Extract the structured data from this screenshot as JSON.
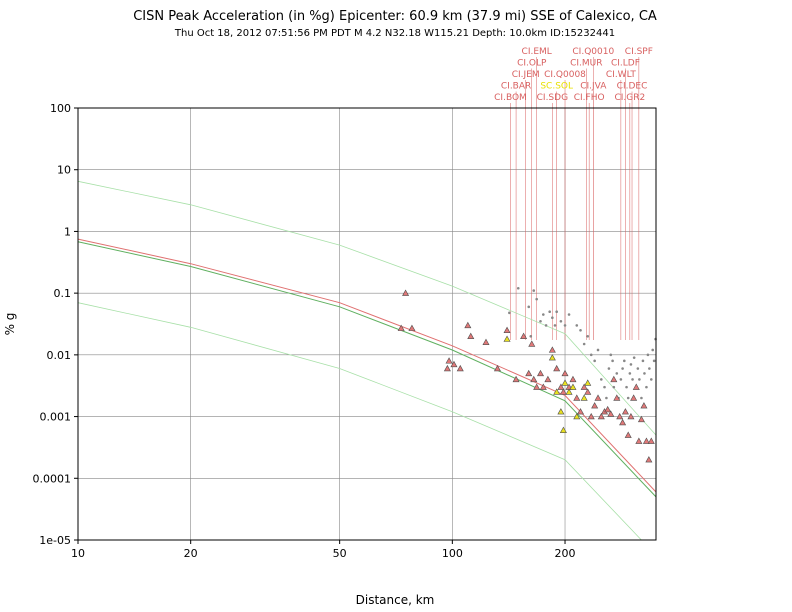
{
  "chart_data": {
    "type": "scatter",
    "title": "CISN Peak Acceleration (in %g) Epicenter: 60.9 km (37.9 mi) SSE of Calexico, CA",
    "subtitle": "Thu Oct 18, 2012 07:51:56 PM PDT   M 4.2   N32.18 W115.21   Depth: 10.0km   ID:15232441",
    "xlabel": "Distance, km",
    "ylabel": "% g",
    "x_scale": "log",
    "y_scale": "log",
    "xlim": [
      10,
      350
    ],
    "ylim": [
      1e-05,
      100
    ],
    "grid": true,
    "x_ticks": [
      {
        "value": 10,
        "label": "10"
      },
      {
        "value": 20,
        "label": "20"
      },
      {
        "value": 50,
        "label": "50"
      },
      {
        "value": 100,
        "label": "100"
      },
      {
        "value": 200,
        "label": "200"
      }
    ],
    "y_ticks": [
      {
        "value": 100,
        "label": "100"
      },
      {
        "value": 10,
        "label": "10"
      },
      {
        "value": 1,
        "label": "1"
      },
      {
        "value": 0.1,
        "label": "0.1"
      },
      {
        "value": 0.01,
        "label": "0.01"
      },
      {
        "value": 0.001,
        "label": "0.001"
      },
      {
        "value": 0.0001,
        "label": "0.0001"
      },
      {
        "value": 1e-05,
        "label": "1e-05"
      }
    ],
    "colors": {
      "red_triangles": "#e07878",
      "yellow_triangles": "#e8e020",
      "gray_points": "#888888",
      "red_curve": "#e07070",
      "green_curve": "#60b060",
      "light_green_curve": "#a8e0a8",
      "station_labels": "#d86060",
      "highlight_label": "#e8e000"
    },
    "curves": [
      {
        "color": "red",
        "points": [
          [
            10,
            0.75
          ],
          [
            20,
            0.3
          ],
          [
            50,
            0.07
          ],
          [
            100,
            0.014
          ],
          [
            200,
            0.0022
          ],
          [
            350,
            6e-05
          ]
        ]
      },
      {
        "color": "green",
        "points": [
          [
            10,
            0.68
          ],
          [
            20,
            0.27
          ],
          [
            50,
            0.06
          ],
          [
            100,
            0.012
          ],
          [
            200,
            0.0018
          ],
          [
            350,
            5e-05
          ]
        ]
      },
      {
        "color": "light-green",
        "points": [
          [
            10,
            6.5
          ],
          [
            20,
            2.7
          ],
          [
            50,
            0.6
          ],
          [
            100,
            0.13
          ],
          [
            200,
            0.022
          ],
          [
            350,
            0.0005
          ]
        ]
      },
      {
        "color": "light-green",
        "points": [
          [
            10,
            0.07
          ],
          [
            20,
            0.028
          ],
          [
            50,
            0.006
          ],
          [
            100,
            0.0012
          ],
          [
            200,
            0.0002
          ],
          [
            320,
            1e-05
          ]
        ]
      }
    ],
    "red_triangles": [
      [
        73,
        0.027
      ],
      [
        75,
        0.1
      ],
      [
        78,
        0.027
      ],
      [
        97,
        0.006
      ],
      [
        98,
        0.008
      ],
      [
        101,
        0.007
      ],
      [
        105,
        0.006
      ],
      [
        110,
        0.03
      ],
      [
        112,
        0.02
      ],
      [
        123,
        0.016
      ],
      [
        132,
        0.006
      ],
      [
        140,
        0.025
      ],
      [
        148,
        0.004
      ],
      [
        155,
        0.02
      ],
      [
        160,
        0.005
      ],
      [
        163,
        0.015
      ],
      [
        165,
        0.004
      ],
      [
        168,
        0.003
      ],
      [
        172,
        0.005
      ],
      [
        175,
        0.003
      ],
      [
        180,
        0.004
      ],
      [
        185,
        0.012
      ],
      [
        190,
        0.006
      ],
      [
        195,
        0.003
      ],
      [
        198,
        0.0025
      ],
      [
        200,
        0.005
      ],
      [
        205,
        0.003
      ],
      [
        210,
        0.004
      ],
      [
        215,
        0.002
      ],
      [
        220,
        0.0012
      ],
      [
        225,
        0.003
      ],
      [
        230,
        0.0025
      ],
      [
        235,
        0.001
      ],
      [
        240,
        0.0015
      ],
      [
        245,
        0.002
      ],
      [
        250,
        0.001
      ],
      [
        255,
        0.0012
      ],
      [
        260,
        0.0013
      ],
      [
        265,
        0.0011
      ],
      [
        270,
        0.004
      ],
      [
        275,
        0.002
      ],
      [
        280,
        0.001
      ],
      [
        285,
        0.0008
      ],
      [
        290,
        0.0012
      ],
      [
        295,
        0.0005
      ],
      [
        300,
        0.001
      ],
      [
        305,
        0.002
      ],
      [
        310,
        0.003
      ],
      [
        315,
        0.0004
      ],
      [
        320,
        0.0009
      ],
      [
        325,
        0.0015
      ],
      [
        330,
        0.0004
      ],
      [
        335,
        0.0002
      ],
      [
        340,
        0.0004
      ]
    ],
    "yellow_triangles": [
      [
        140,
        0.018
      ],
      [
        185,
        0.009
      ],
      [
        190,
        0.0025
      ],
      [
        195,
        0.0012
      ],
      [
        198,
        0.0006
      ],
      [
        200,
        0.0035
      ],
      [
        205,
        0.0025
      ],
      [
        210,
        0.003
      ],
      [
        215,
        0.001
      ],
      [
        225,
        0.002
      ],
      [
        230,
        0.0035
      ]
    ],
    "gray_points": [
      [
        142,
        0.048
      ],
      [
        150,
        0.12
      ],
      [
        160,
        0.06
      ],
      [
        162,
        0.02
      ],
      [
        165,
        0.11
      ],
      [
        168,
        0.08
      ],
      [
        172,
        0.035
      ],
      [
        175,
        0.045
      ],
      [
        178,
        0.03
      ],
      [
        182,
        0.05
      ],
      [
        185,
        0.04
      ],
      [
        188,
        0.03
      ],
      [
        190,
        0.05
      ],
      [
        195,
        0.035
      ],
      [
        200,
        0.03
      ],
      [
        205,
        0.045
      ],
      [
        215,
        0.03
      ],
      [
        220,
        0.025
      ],
      [
        225,
        0.015
      ],
      [
        230,
        0.02
      ],
      [
        235,
        0.01
      ],
      [
        240,
        0.008
      ],
      [
        245,
        0.012
      ],
      [
        250,
        0.004
      ],
      [
        255,
        0.003
      ],
      [
        258,
        0.002
      ],
      [
        262,
        0.006
      ],
      [
        265,
        0.01
      ],
      [
        268,
        0.008
      ],
      [
        270,
        0.003
      ],
      [
        275,
        0.005
      ],
      [
        278,
        0.002
      ],
      [
        282,
        0.004
      ],
      [
        285,
        0.006
      ],
      [
        288,
        0.008
      ],
      [
        292,
        0.003
      ],
      [
        295,
        0.002
      ],
      [
        298,
        0.005
      ],
      [
        300,
        0.007
      ],
      [
        303,
        0.004
      ],
      [
        306,
        0.009
      ],
      [
        310,
        0.003
      ],
      [
        313,
        0.006
      ],
      [
        316,
        0.004
      ],
      [
        320,
        0.002
      ],
      [
        323,
        0.008
      ],
      [
        326,
        0.005
      ],
      [
        330,
        0.003
      ],
      [
        333,
        0.01
      ],
      [
        336,
        0.006
      ],
      [
        340,
        0.004
      ],
      [
        343,
        0.012
      ],
      [
        346,
        0.008
      ],
      [
        349,
        0.018
      ]
    ],
    "station_labels": [
      {
        "name": "CI.BOM",
        "x": 143,
        "row": 0,
        "color": "red"
      },
      {
        "name": "CI.BAR",
        "x": 148,
        "row": 1,
        "color": "red"
      },
      {
        "name": "CI.JEM",
        "x": 157,
        "row": 2,
        "color": "red"
      },
      {
        "name": "CI.OLP",
        "x": 163,
        "row": 3,
        "color": "red"
      },
      {
        "name": "CI.EML",
        "x": 168,
        "row": 4,
        "color": "red"
      },
      {
        "name": "CI.SDG",
        "x": 185,
        "row": 0,
        "color": "red"
      },
      {
        "name": "SC.SOL",
        "x": 190,
        "row": 1,
        "color": "yellow"
      },
      {
        "name": "CI.Q0008",
        "x": 200,
        "row": 2,
        "color": "red"
      },
      {
        "name": "CI.FHO",
        "x": 232,
        "row": 0,
        "color": "red"
      },
      {
        "name": "CI.JVA",
        "x": 238,
        "row": 1,
        "color": "red"
      },
      {
        "name": "CI.MUR",
        "x": 228,
        "row": 3,
        "color": "red"
      },
      {
        "name": "CI.Q0010",
        "x": 238,
        "row": 4,
        "color": "red"
      },
      {
        "name": "CI.GR2",
        "x": 298,
        "row": 0,
        "color": "red"
      },
      {
        "name": "CI.DEC",
        "x": 302,
        "row": 1,
        "color": "red"
      },
      {
        "name": "CI.WLT",
        "x": 282,
        "row": 2,
        "color": "red"
      },
      {
        "name": "CI.LDF",
        "x": 290,
        "row": 3,
        "color": "red"
      },
      {
        "name": "CI.SPF",
        "x": 315,
        "row": 4,
        "color": "red"
      }
    ]
  }
}
